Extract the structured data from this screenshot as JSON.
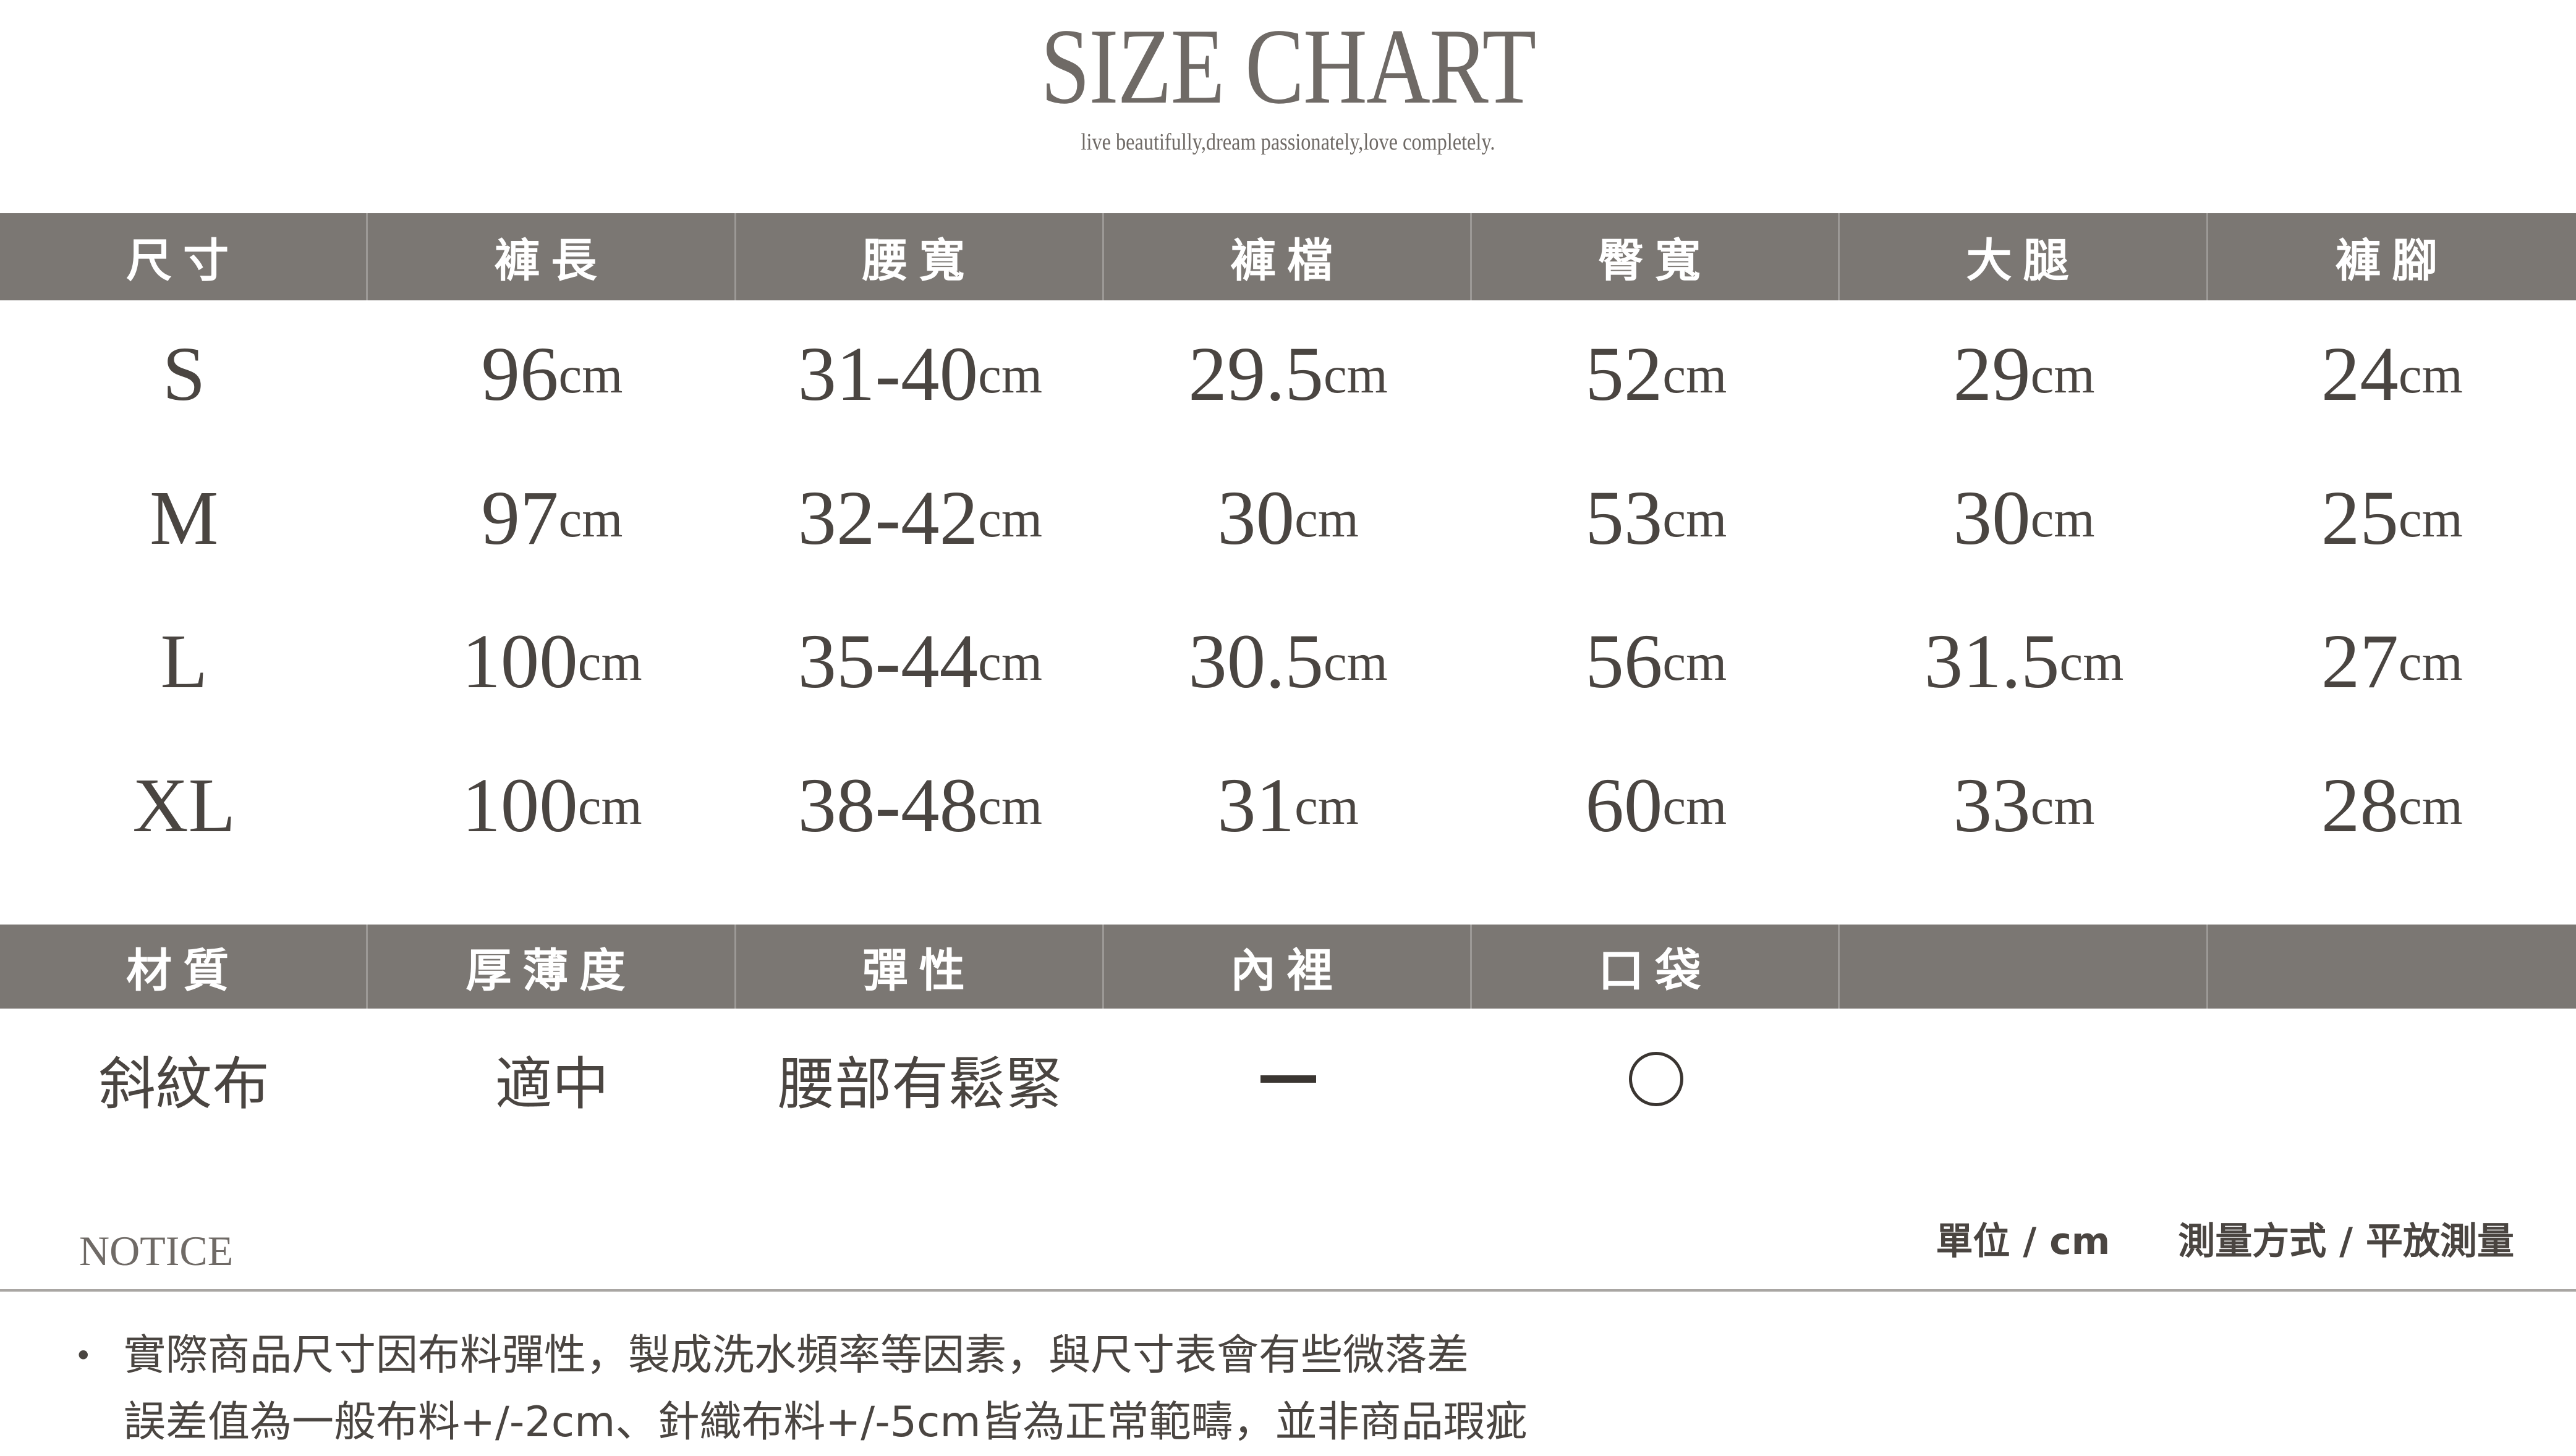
{
  "title": "SIZE CHART",
  "subtitle": "live beautifully,dream passionately,love completely.",
  "size_table": {
    "headers": [
      "尺寸",
      "褲長",
      "腰寬",
      "褲檔",
      "臀寬",
      "大腿",
      "褲腳"
    ],
    "unit": "cm",
    "rows": [
      [
        "S",
        "96",
        "31-40",
        "29.5",
        "52",
        "29",
        "24"
      ],
      [
        "M",
        "97",
        "32-42",
        "30",
        "53",
        "30",
        "25"
      ],
      [
        "L",
        "100",
        "35-44",
        "30.5",
        "56",
        "31.5",
        "27"
      ],
      [
        "XL",
        "100",
        "38-48",
        "31",
        "60",
        "33",
        "28"
      ]
    ]
  },
  "material_table": {
    "headers": [
      "材質",
      "厚薄度",
      "彈性",
      "內裡",
      "口袋",
      ""
    ],
    "values": [
      "斜紋布",
      "適中",
      "腰部有鬆緊",
      "dash-icon",
      "circle-icon"
    ]
  },
  "notice_label": "NOTICE",
  "unit_note": "單位 / cm",
  "measure_note": "測量方式 / 平放測量",
  "notes": [
    "實際商品尺寸因布料彈性，製成洗水頻率等因素，與尺寸表會有些微落差",
    "誤差值為一般布料+/-2cm、針織布料+/-5cm皆為正常範疇，並非商品瑕疵"
  ],
  "colors": {
    "band": "#7b7773",
    "text": "#4a4541"
  }
}
